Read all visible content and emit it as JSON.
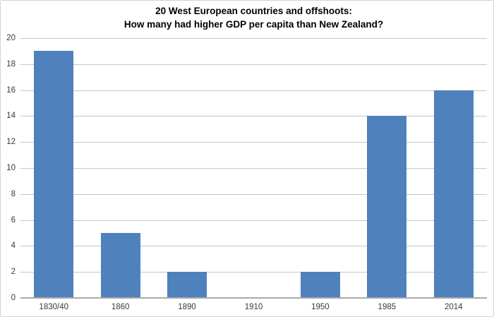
{
  "title": {
    "line1": "20 West European countries and offshoots:",
    "line2": "How many had higher GDP per capita than New Zealand?"
  },
  "chart_data": {
    "type": "bar",
    "title": "20 West European countries and offshoots: How many had higher GDP per capita than New Zealand?",
    "categories": [
      "1830/40",
      "1860",
      "1890",
      "1910",
      "1950",
      "1985",
      "2014"
    ],
    "values": [
      19,
      5,
      2,
      0,
      2,
      14,
      16
    ],
    "xlabel": "",
    "ylabel": "",
    "ylim": [
      0,
      20
    ],
    "ytick_step": 2,
    "grid": "horizontal",
    "legend": "none",
    "bar_color": "#4f81bd",
    "gridline_color": "#c6c6c6",
    "axis_line_color": "#a9a9a9",
    "tick_label_color": "#3a3a3a",
    "title_color": "#000000"
  }
}
